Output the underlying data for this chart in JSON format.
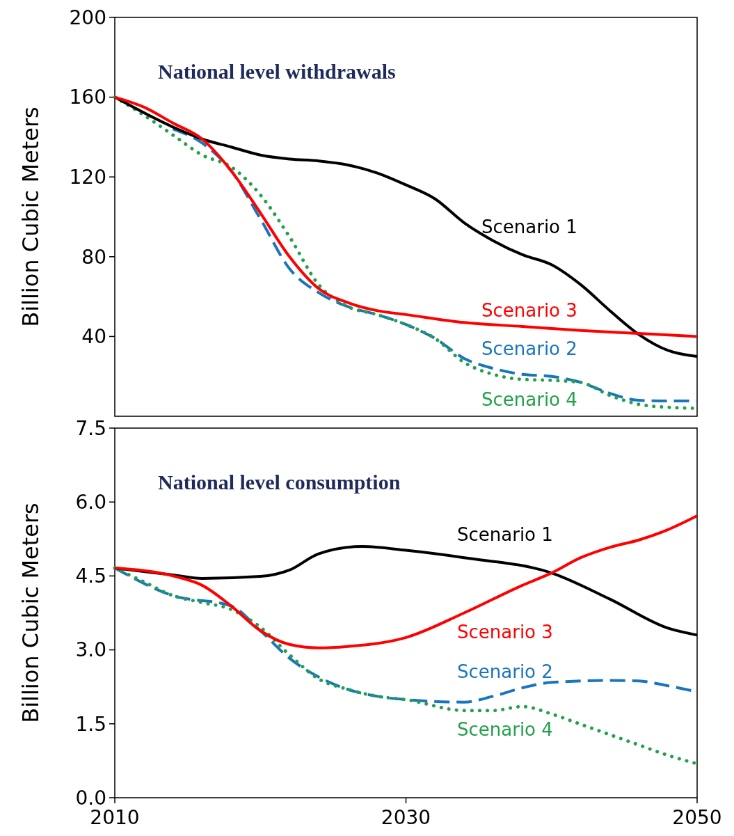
{
  "chart_data": [
    {
      "type": "line",
      "title": "National level withdrawals",
      "ylabel": "Billion Cubic Meters",
      "xlim": [
        2010,
        2050
      ],
      "ylim": [
        0,
        200
      ],
      "yticks": [
        40,
        80,
        120,
        160,
        200
      ],
      "tick_labels": "y",
      "grid": false,
      "marker": "none",
      "series": [
        {
          "name": "Scenario 1",
          "color": "#000000",
          "line_style": "solid",
          "x": [
            2010,
            2014,
            2016,
            2018,
            2020,
            2022,
            2024,
            2026,
            2028,
            2030,
            2032,
            2034,
            2036,
            2038,
            2040,
            2042,
            2044,
            2046,
            2048,
            2050
          ],
          "values": [
            160,
            145,
            139,
            135,
            131,
            129,
            128,
            126,
            122,
            116,
            109,
            97,
            88,
            81,
            76,
            66,
            53,
            41,
            33,
            30
          ]
        },
        {
          "name": "Scenario 3",
          "color": "#ff0000",
          "line_style": "solid",
          "x": [
            2010,
            2012,
            2014,
            2016,
            2018,
            2020,
            2022,
            2024,
            2026,
            2028,
            2030,
            2034,
            2038,
            2042,
            2046,
            2050
          ],
          "values": [
            160,
            155,
            147,
            139,
            123,
            102,
            80,
            64,
            57,
            53,
            51,
            47,
            45,
            43,
            41.5,
            40
          ]
        },
        {
          "name": "Scenario 2",
          "color": "#1b75bc",
          "line_style": "dashed",
          "x": [
            2014,
            2016,
            2018,
            2020,
            2022,
            2024,
            2026,
            2028,
            2030,
            2032,
            2034,
            2036,
            2038,
            2040,
            2042,
            2044,
            2046,
            2048,
            2050
          ],
          "values": [
            144,
            137,
            123,
            99,
            74,
            62,
            55,
            51,
            46,
            39,
            29,
            24,
            21,
            20,
            17,
            11.5,
            8,
            7.7,
            7.7
          ]
        },
        {
          "name": "Scenario 4",
          "color": "#22a04a",
          "line_style": "dotted",
          "x": [
            2010,
            2012,
            2014,
            2016,
            2018,
            2020,
            2022,
            2024,
            2026,
            2028,
            2030,
            2032,
            2034,
            2036,
            2038,
            2040,
            2042,
            2044,
            2046,
            2048,
            2050
          ],
          "values": [
            160,
            151,
            141,
            131,
            125,
            111,
            90,
            66,
            55,
            51,
            46,
            39,
            27,
            21,
            18.5,
            18,
            17,
            10.5,
            6,
            4.5,
            4
          ]
        }
      ]
    },
    {
      "type": "line",
      "title": "National level consumption",
      "ylabel": "Billion Cubic Meters",
      "xlim": [
        2010,
        2050
      ],
      "ylim": [
        0,
        7.5
      ],
      "yticks": [
        {
          "value": 0,
          "label": "0.0"
        },
        1.5,
        {
          "value": 3,
          "label": "3.0"
        },
        4.5,
        {
          "value": 6,
          "label": "6.0"
        },
        7.5
      ],
      "xticks": [
        2010,
        2030,
        2050
      ],
      "grid": false,
      "marker": "none",
      "series": [
        {
          "name": "Scenario 1",
          "color": "#000000",
          "line_style": "solid",
          "x": [
            2010,
            2014,
            2016,
            2020,
            2022,
            2024,
            2027,
            2030,
            2034,
            2040,
            2044,
            2048,
            2050
          ],
          "values": [
            4.66,
            4.52,
            4.45,
            4.49,
            4.62,
            4.95,
            5.1,
            5.02,
            4.87,
            4.56,
            4.03,
            3.44,
            3.3
          ]
        },
        {
          "name": "Scenario 3",
          "color": "#ff0000",
          "line_style": "solid",
          "x": [
            2010,
            2014,
            2016,
            2018,
            2020,
            2022,
            2024,
            2026,
            2030,
            2034,
            2038,
            2040,
            2042,
            2044,
            2046,
            2048,
            2050
          ],
          "values": [
            4.66,
            4.5,
            4.31,
            3.89,
            3.39,
            3.11,
            3.04,
            3.07,
            3.25,
            3.75,
            4.31,
            4.56,
            4.87,
            5.08,
            5.23,
            5.44,
            5.72
          ]
        },
        {
          "name": "Scenario 2",
          "color": "#1b75bc",
          "line_style": "dashed",
          "x": [
            2010,
            2014,
            2018,
            2020,
            2022,
            2024,
            2026,
            2028,
            2030,
            2034,
            2036,
            2038,
            2040,
            2044,
            2046,
            2048,
            2050
          ],
          "values": [
            4.66,
            4.1,
            3.89,
            3.39,
            2.83,
            2.45,
            2.2,
            2.06,
            1.99,
            1.94,
            2.06,
            2.23,
            2.34,
            2.38,
            2.37,
            2.27,
            2.15
          ]
        },
        {
          "name": "Scenario 4",
          "color": "#22a04a",
          "line_style": "dotted",
          "x": [
            2010,
            2012,
            2014,
            2016,
            2018,
            2020,
            2022,
            2024,
            2026,
            2028,
            2030,
            2034,
            2036,
            2038,
            2040,
            2042,
            2044,
            2046,
            2048,
            2050
          ],
          "values": [
            4.66,
            4.38,
            4.1,
            3.96,
            3.82,
            3.46,
            2.9,
            2.41,
            2.2,
            2.06,
            1.99,
            1.77,
            1.77,
            1.85,
            1.7,
            1.49,
            1.28,
            1.07,
            0.86,
            0.69
          ]
        }
      ]
    }
  ]
}
